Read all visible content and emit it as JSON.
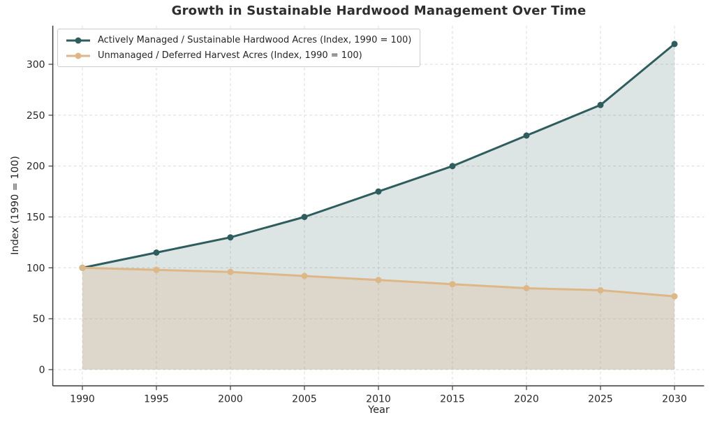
{
  "title": "Growth in Sustainable Hardwood Management Over Time",
  "chart_data": {
    "type": "area",
    "x": [
      1990,
      1995,
      2000,
      2005,
      2010,
      2015,
      2020,
      2025,
      2030
    ],
    "series": [
      {
        "name": "Actively Managed / Sustainable Hardwood Acres (Index, 1990 = 100)",
        "color": "#2D5E5D",
        "fill_opacity": 0.17,
        "values": [
          100,
          115,
          130,
          150,
          175,
          200,
          230,
          260,
          320
        ]
      },
      {
        "name": "Unmanaged / Deferred Harvest Acres (Index, 1990 = 100)",
        "color": "#DEB787",
        "fill_opacity": 0.28,
        "values": [
          100,
          98,
          96,
          92,
          88,
          84,
          80,
          78,
          72
        ]
      }
    ],
    "title": "Growth in Sustainable Hardwood Management Over Time",
    "xlabel": "Year",
    "ylabel": "Index (1990 = 100)",
    "xlim": [
      1988,
      2032
    ],
    "ylim": [
      -16,
      338
    ],
    "xticks": [
      1990,
      1995,
      2000,
      2005,
      2010,
      2015,
      2020,
      2025,
      2030
    ],
    "yticks": [
      0,
      50,
      100,
      150,
      200,
      250,
      300
    ],
    "grid": true,
    "grid_style": "dashed",
    "legend_position": "upper-left",
    "fill_baseline": 0
  },
  "colors": {
    "background": "#FFFFFF",
    "grid": "#DBDBDB",
    "spine": "#3A3A3A",
    "tick_text": "#262626",
    "title_text": "#2E2E2E",
    "legend_border": "#CCCCCC"
  }
}
